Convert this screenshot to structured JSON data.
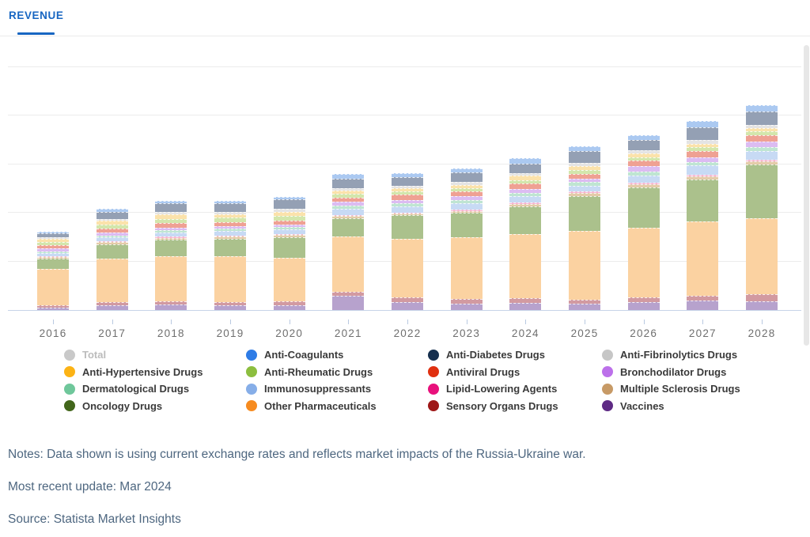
{
  "tab": {
    "label": "REVENUE"
  },
  "colors": {
    "accent_blue": "#1766c2",
    "gridline": "#ececec",
    "axis_line": "#c7d3e8",
    "x_label": "#6f6f6f",
    "notes_text": "#4e6780",
    "legend_text": "#3a3a3a",
    "legend_muted_text": "#bcbcbc"
  },
  "legend": {
    "items": [
      {
        "label": "Total",
        "color": "#c9c9c9",
        "muted": true
      },
      {
        "label": "Anti-Coagulants",
        "color": "#2e7ce6",
        "muted": false
      },
      {
        "label": "Anti-Diabetes Drugs",
        "color": "#152f4e",
        "muted": false
      },
      {
        "label": "Anti-Fibrinolytics Drugs",
        "color": "#c6c6c6",
        "muted": false
      },
      {
        "label": "Anti-Hypertensive Drugs",
        "color": "#fcb315",
        "muted": false
      },
      {
        "label": "Anti-Rheumatic Drugs",
        "color": "#8cbe3f",
        "muted": false
      },
      {
        "label": "Antiviral Drugs",
        "color": "#e03010",
        "muted": false
      },
      {
        "label": "Bronchodilator Drugs",
        "color": "#bc70ea",
        "muted": false
      },
      {
        "label": "Dermatological Drugs",
        "color": "#6fc79b",
        "muted": false
      },
      {
        "label": "Immunosuppressants",
        "color": "#86aee8",
        "muted": false
      },
      {
        "label": "Lipid-Lowering Agents",
        "color": "#e8117c",
        "muted": false
      },
      {
        "label": "Multiple Sclerosis Drugs",
        "color": "#c79a66",
        "muted": false
      },
      {
        "label": "Oncology Drugs",
        "color": "#42661b",
        "muted": false
      },
      {
        "label": "Other Pharmaceuticals",
        "color": "#f68b20",
        "muted": false
      },
      {
        "label": "Sensory Organs Drugs",
        "color": "#9e1717",
        "muted": false
      },
      {
        "label": "Vaccines",
        "color": "#5e2a84",
        "muted": false
      }
    ]
  },
  "chart_data": {
    "type": "bar",
    "variant": "stacked",
    "title": "Revenue",
    "xlabel": "",
    "ylabel": "",
    "categories": [
      "2016",
      "2017",
      "2018",
      "2019",
      "2020",
      "2021",
      "2022",
      "2023",
      "2024",
      "2025",
      "2026",
      "2027",
      "2028"
    ],
    "axis_note": "y-axis has unlabeled gridlines; values estimated in relative units where one gridline interval = 100",
    "ylim": [
      0,
      545
    ],
    "gridlines_y": [
      100,
      200,
      300,
      400,
      500
    ],
    "grid": true,
    "legend_position": "bottom",
    "stack_order": "bottom to top as listed",
    "series": [
      {
        "name": "Vaccines",
        "bar_color": "#b7a2cd",
        "values": [
          4.9,
          9.8,
          11.4,
          9.3,
          10.4,
          28.8,
          16.3,
          13.0,
          14.6,
          12.5,
          16.3,
          19.0,
          17.9
        ]
      },
      {
        "name": "Sensory Organs Drugs",
        "bar_color": "#d29aa1",
        "values": [
          5.7,
          6.0,
          6.5,
          6.5,
          7.0,
          9.3,
          9.8,
          9.8,
          9.8,
          9.3,
          9.8,
          10.9,
          14.6
        ]
      },
      {
        "name": "Other Pharmaceuticals",
        "bar_color": "#fbd2a1",
        "values": [
          74.8,
          90.6,
          92.2,
          94.3,
          90.2,
          113.8,
          120.3,
          127.5,
          131.2,
          140.8,
          143.1,
          151.7,
          156.7
        ]
      },
      {
        "name": "Oncology Drugs",
        "bar_color": "#abc18c",
        "values": [
          21.1,
          28.6,
          34.1,
          35.8,
          41.8,
          37.4,
          48.8,
          49.3,
          57.4,
          72.2,
          82.9,
          86.7,
          110.6
        ]
      },
      {
        "name": "Multiple Sclerosis Drugs",
        "bar_color": "#e4cba9",
        "values": [
          3.3,
          4.4,
          3.7,
          4.9,
          4.4,
          4.2,
          3.9,
          4.4,
          5.5,
          5.4,
          6.5,
          7.2,
          6.5
        ]
      },
      {
        "name": "Lipid-Lowering Agents",
        "bar_color": "#f5b5d2",
        "values": [
          1.6,
          2.1,
          3.3,
          2.6,
          2.6,
          1.6,
          1.6,
          2.1,
          2.1,
          3.7,
          2.8,
          2.1,
          2.1
        ]
      },
      {
        "name": "Immunosuppressants",
        "bar_color": "#c7daf4",
        "values": [
          6.5,
          7.6,
          8.8,
          9.8,
          9.3,
          13.7,
          12.4,
          13.5,
          14.1,
          12.0,
          15.1,
          19.5,
          18.4
        ]
      },
      {
        "name": "Dermatological Drugs",
        "bar_color": "#bfe5d2",
        "values": [
          3.3,
          4.4,
          4.2,
          4.4,
          4.4,
          6.5,
          6.5,
          6.5,
          6.5,
          7.0,
          8.1,
          7.6,
          8.8
        ]
      },
      {
        "name": "Bronchodilator Drugs",
        "bar_color": "#dcbcf2",
        "values": [
          5.7,
          5.4,
          5.5,
          5.4,
          6.5,
          7.0,
          7.2,
          8.1,
          8.1,
          6.5,
          10.9,
          9.8,
          10.7
        ]
      },
      {
        "name": "Antiviral Drugs",
        "bar_color": "#efa193",
        "values": [
          6.5,
          8.6,
          8.6,
          7.6,
          7.0,
          8.1,
          10.7,
          9.8,
          10.7,
          10.9,
          12.5,
          11.9,
          14.1
        ]
      },
      {
        "name": "Anti-Rheumatic Drugs",
        "bar_color": "#d3e6ac",
        "values": [
          7.3,
          7.6,
          9.3,
          10.6,
          10.6,
          8.1,
          6.5,
          7.2,
          7.2,
          8.6,
          6.5,
          8.6,
          7.6
        ]
      },
      {
        "name": "Anti-Hypertensive Drugs",
        "bar_color": "#fbe2ab",
        "values": [
          6.5,
          8.6,
          9.1,
          6.5,
          8.1,
          8.1,
          7.2,
          6.5,
          9.1,
          8.1,
          8.1,
          7.6,
          6.5
        ]
      },
      {
        "name": "Anti-Fibrinolytics Drugs",
        "bar_color": "#e4e4e4",
        "values": [
          2.4,
          3.9,
          6.0,
          4.2,
          5.5,
          4.4,
          4.9,
          5.4,
          5.5,
          6.5,
          7.0,
          7.0,
          6.5
        ]
      },
      {
        "name": "Anti-Diabetes Drugs",
        "bar_color": "#94a0b4",
        "values": [
          8.9,
          14.6,
          17.9,
          18.5,
          20.0,
          20.0,
          17.9,
          20.0,
          18.9,
          24.4,
          20.0,
          27.2,
          27.0
        ]
      },
      {
        "name": "Anti-Coagulants",
        "bar_color": "#abc9f1",
        "values": [
          2.4,
          5.4,
          4.4,
          3.7,
          5.4,
          9.3,
          8.1,
          8.8,
          12.0,
          9.3,
          10.9,
          12.5,
          13.0
        ]
      }
    ]
  },
  "notes": {
    "line1": "Notes: Data shown is using current exchange rates and reflects market impacts of the Russia-Ukraine war.",
    "line2": "Most recent update: Mar 2024",
    "line3": "Source: Statista Market Insights"
  }
}
